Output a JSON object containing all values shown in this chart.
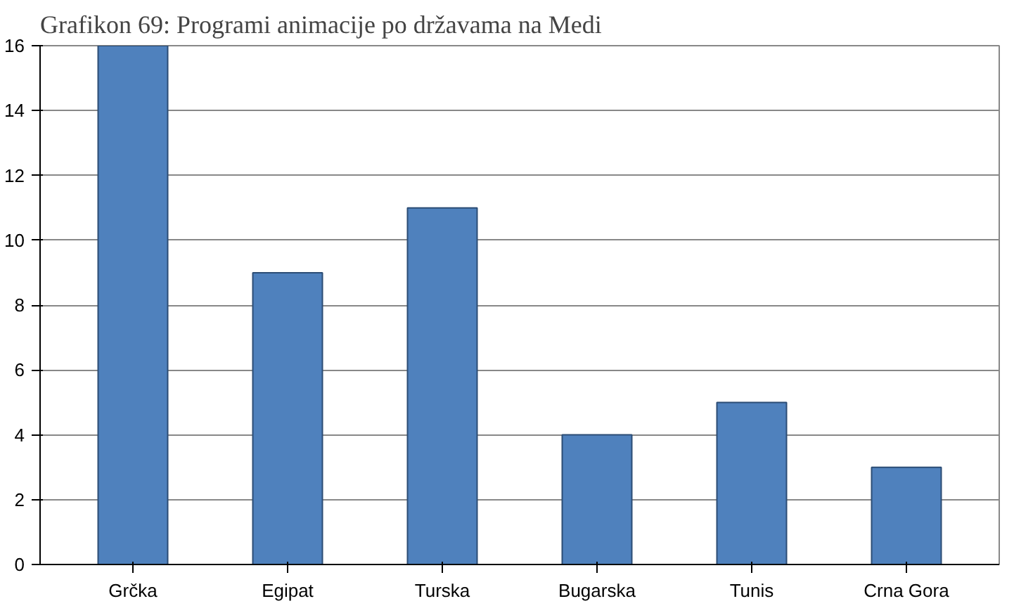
{
  "chart_data": {
    "type": "bar",
    "title": "Grafikon 69: Programi animacije po državama na Medi",
    "categories": [
      "Grčka",
      "Egipat",
      "Turska",
      "Bugarska",
      "Tunis",
      "Crna Gora"
    ],
    "values": [
      16,
      9,
      11,
      4,
      5,
      3
    ],
    "color": "#4f81bd",
    "ylim": [
      0,
      16
    ],
    "yticks": [
      0,
      2,
      4,
      6,
      8,
      10,
      12,
      14,
      16
    ],
    "grid": "y"
  }
}
